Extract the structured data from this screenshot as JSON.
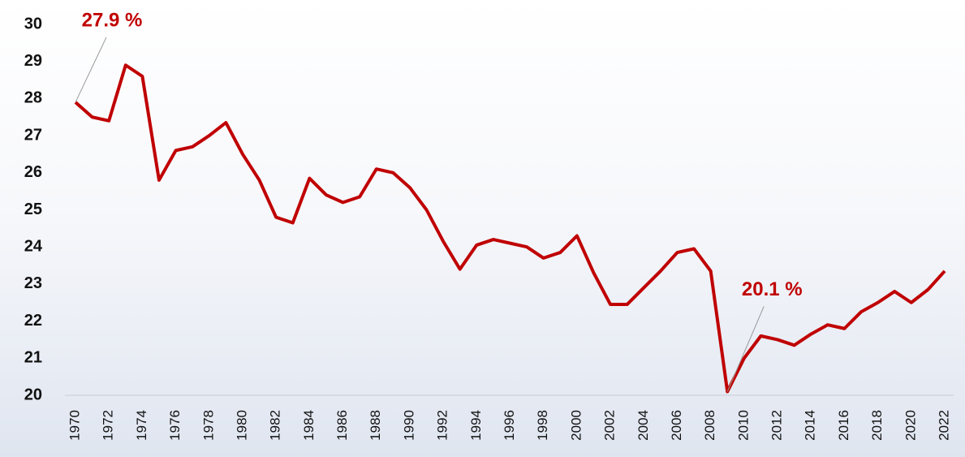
{
  "chart_data": {
    "type": "line",
    "x": [
      1970,
      1971,
      1972,
      1973,
      1974,
      1975,
      1976,
      1977,
      1978,
      1979,
      1980,
      1981,
      1982,
      1983,
      1984,
      1985,
      1986,
      1987,
      1988,
      1989,
      1990,
      1991,
      1992,
      1993,
      1994,
      1995,
      1996,
      1997,
      1998,
      1999,
      2000,
      2001,
      2002,
      2003,
      2004,
      2005,
      2006,
      2007,
      2008,
      2009,
      2010,
      2011,
      2012,
      2013,
      2014,
      2015,
      2016,
      2017,
      2018,
      2019,
      2020,
      2021,
      2022
    ],
    "series": [
      {
        "color": "#c00000",
        "values": [
          27.9,
          27.5,
          27.4,
          28.9,
          28.6,
          25.8,
          26.6,
          26.7,
          27.0,
          27.35,
          26.5,
          25.8,
          24.8,
          24.65,
          25.85,
          25.4,
          25.2,
          25.35,
          26.1,
          26.0,
          25.6,
          25.0,
          24.15,
          23.4,
          24.05,
          24.2,
          24.1,
          24.0,
          23.7,
          23.85,
          24.3,
          23.3,
          22.45,
          22.45,
          22.9,
          23.35,
          23.85,
          23.95,
          23.35,
          20.1,
          21.0,
          21.6,
          21.5,
          21.35,
          21.65,
          21.9,
          21.8,
          22.25,
          22.5,
          22.8,
          22.5,
          22.85,
          23.35
        ],
        "value_labels": [
          "27.9 %",
          null,
          null,
          null,
          null,
          null,
          null,
          null,
          null,
          null,
          null,
          null,
          null,
          null,
          null,
          null,
          null,
          null,
          null,
          null,
          null,
          null,
          null,
          null,
          null,
          null,
          null,
          null,
          null,
          null,
          null,
          null,
          null,
          null,
          null,
          null,
          null,
          null,
          null,
          "20.1 %",
          null,
          null,
          null,
          null,
          null,
          null,
          null,
          null,
          null,
          null,
          null,
          null,
          null
        ]
      }
    ],
    "xlim": [
      1970,
      2022
    ],
    "xticks": [
      1970,
      1972,
      1974,
      1976,
      1978,
      1980,
      1982,
      1984,
      1986,
      1988,
      1990,
      1992,
      1994,
      1996,
      1998,
      2000,
      2002,
      2004,
      2006,
      2008,
      2010,
      2012,
      2014,
      2016,
      2018,
      2020,
      2022
    ],
    "ylim": [
      20,
      30
    ],
    "yticks": [
      20,
      21,
      22,
      23,
      24,
      25,
      26,
      27,
      28,
      29,
      30
    ]
  }
}
